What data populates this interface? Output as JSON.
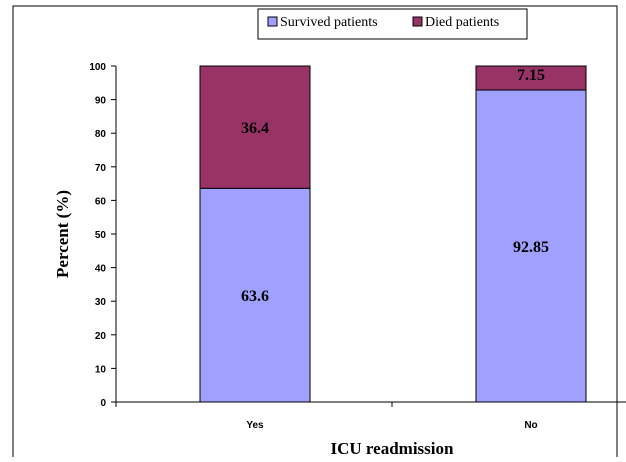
{
  "chart_data": {
    "type": "bar",
    "stacked": true,
    "categories": [
      "Yes",
      "No"
    ],
    "series": [
      {
        "name": "Survived patients",
        "values": [
          63.6,
          92.85
        ],
        "labels": [
          "63.6",
          "92.85"
        ],
        "color": "#A0A0FF"
      },
      {
        "name": "Died patients",
        "values": [
          36.4,
          7.15
        ],
        "labels": [
          "36.4",
          "7.15"
        ],
        "color": "#993366"
      }
    ],
    "xlabel": "ICU readmission",
    "ylabel": "Percent (%)",
    "ylim": [
      0,
      100
    ],
    "yticks": [
      "0",
      "10",
      "20",
      "30",
      "40",
      "50",
      "60",
      "70",
      "80",
      "90",
      "100"
    ],
    "grid": false,
    "legend_position": "top-center"
  }
}
